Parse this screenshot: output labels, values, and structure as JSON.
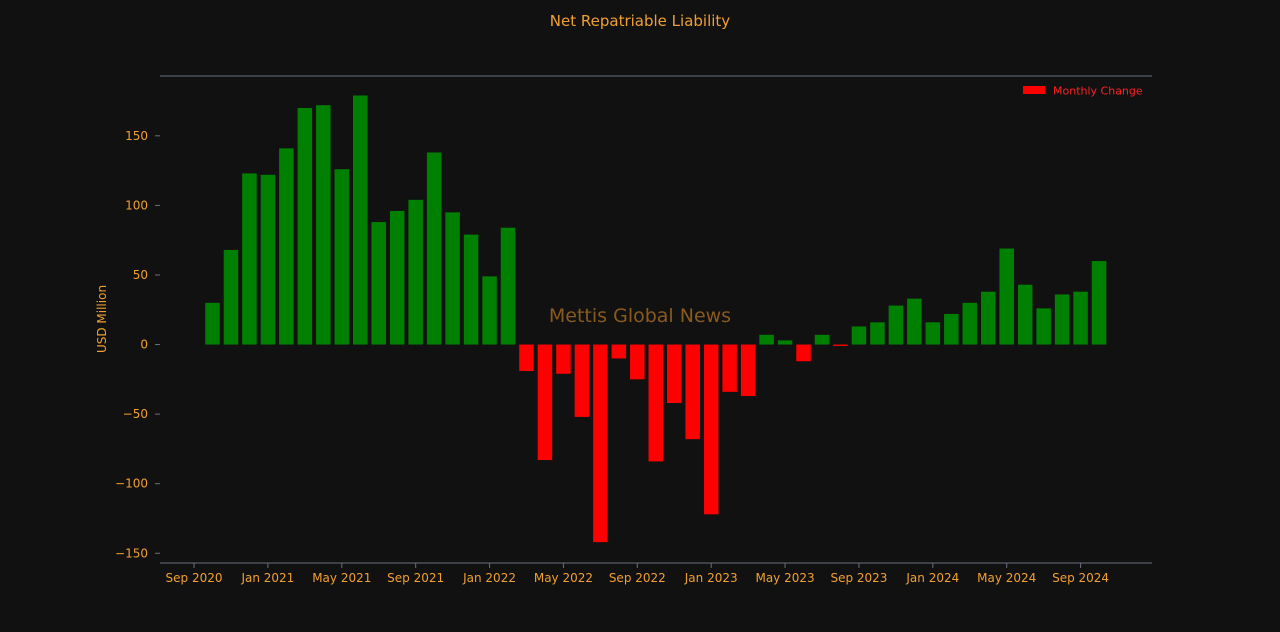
{
  "chart_data": {
    "type": "bar",
    "title": "Net Repatriable Liability",
    "ylabel": "USD Million",
    "xlabel": "",
    "watermark": "Mettis Global News",
    "legend": {
      "label": "Monthly Change",
      "placement": "top-right"
    },
    "ylim": [
      -157,
      193
    ],
    "yticks": [
      -150,
      -100,
      -50,
      0,
      50,
      100,
      150
    ],
    "xtick_labels": [
      "Sep 2020",
      "Jan 2021",
      "May 2021",
      "Sep 2021",
      "Jan 2022",
      "May 2022",
      "Sep 2022",
      "Jan 2023",
      "May 2023",
      "Sep 2023",
      "Jan 2024",
      "May 2024",
      "Sep 2024"
    ],
    "x": [
      "Oct 2020",
      "Nov 2020",
      "Dec 2020",
      "Jan 2021",
      "Feb 2021",
      "Mar 2021",
      "Apr 2021",
      "May 2021",
      "Jun 2021",
      "Jul 2021",
      "Aug 2021",
      "Sep 2021",
      "Oct 2021",
      "Nov 2021",
      "Dec 2021",
      "Jan 2022",
      "Feb 2022",
      "Mar 2022",
      "Apr 2022",
      "May 2022",
      "Jun 2022",
      "Jul 2022",
      "Aug 2022",
      "Sep 2022",
      "Oct 2022",
      "Nov 2022",
      "Dec 2022",
      "Jan 2023",
      "Feb 2023",
      "Mar 2023",
      "Apr 2023",
      "May 2023",
      "Jun 2023",
      "Jul 2023",
      "Aug 2023",
      "Sep 2023",
      "Oct 2023",
      "Nov 2023",
      "Dec 2023",
      "Jan 2024",
      "Feb 2024",
      "Mar 2024",
      "Apr 2024",
      "May 2024",
      "Jun 2024",
      "Jul 2024",
      "Aug 2024",
      "Sep 2024",
      "Oct 2024"
    ],
    "values": [
      30,
      68,
      123,
      122,
      141,
      170,
      172,
      126,
      179,
      88,
      96,
      104,
      138,
      95,
      79,
      49,
      84,
      -19,
      -83,
      -21,
      -52,
      -142,
      -10,
      -25,
      -84,
      -42,
      -68,
      -122,
      -34,
      -37,
      7,
      3,
      -12,
      7,
      -1,
      13,
      16,
      28,
      33,
      16,
      22,
      30,
      38,
      69,
      43,
      26,
      36,
      38,
      60
    ],
    "colors": {
      "positive": "#008000",
      "negative": "#ff0000",
      "background": "#111111",
      "text": "#f0a030",
      "axis": "#6a7080"
    }
  }
}
